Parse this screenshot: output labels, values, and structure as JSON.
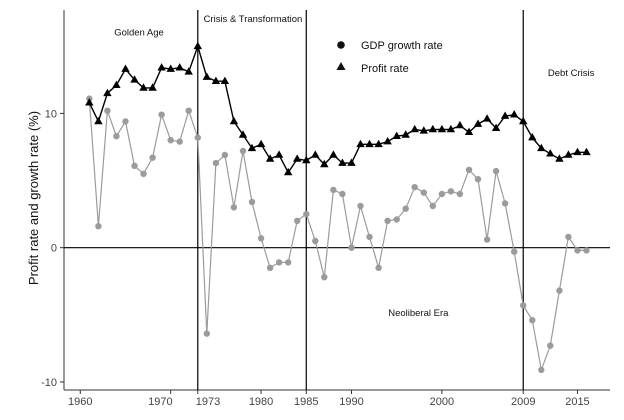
{
  "chart_data": {
    "type": "line",
    "ylabel": "Profit rate and growth rate (%)",
    "xlabel": "",
    "xlim": [
      1958.2,
      2018.6
    ],
    "ylim": [
      -10.6,
      17.7
    ],
    "x_ticks": [
      {
        "value": 1960,
        "label": "1960"
      },
      {
        "value": 1970,
        "label": "1970"
      },
      {
        "value": 1973,
        "label": "1973"
      },
      {
        "value": 1980,
        "label": "1980"
      },
      {
        "value": 1985,
        "label": "1985"
      },
      {
        "value": 1990,
        "label": "1990"
      },
      {
        "value": 2000,
        "label": "2000"
      },
      {
        "value": 2009,
        "label": "2009"
      },
      {
        "value": 2015,
        "label": "2015"
      }
    ],
    "y_ticks": [
      {
        "value": 10,
        "label": "10"
      },
      {
        "value": 0,
        "label": "0"
      },
      {
        "value": -10,
        "label": "-10"
      }
    ],
    "reference_lines": {
      "vertical": [
        1973,
        1985,
        2009
      ],
      "horizontal": [
        0
      ]
    },
    "eras": [
      {
        "label": "Golden Age",
        "x": 1966.5,
        "y": 15.8
      },
      {
        "label": "Crisis & Transformation",
        "x": 1979.1,
        "y": 16.8
      },
      {
        "label": "Neoliberal Era",
        "x": 1997.4,
        "y": -5.1
      },
      {
        "label": "Debt Crisis",
        "x": 2014.3,
        "y": 12.8
      }
    ],
    "legend": {
      "position": "top-center",
      "entries": [
        {
          "label": "GDP growth rate",
          "marker": "circle"
        },
        {
          "label": "Profit rate",
          "marker": "triangle"
        }
      ]
    },
    "colors": {
      "gdp": "#9b9b9b",
      "profit": "#000000",
      "axis": "#333333",
      "reference": "#000000"
    },
    "series": [
      {
        "name": "GDP growth rate",
        "marker": "circle",
        "x": [
          1961,
          1962,
          1963,
          1964,
          1965,
          1966,
          1967,
          1968,
          1969,
          1970,
          1971,
          1972,
          1973,
          1974,
          1975,
          1976,
          1977,
          1978,
          1979,
          1980,
          1981,
          1982,
          1983,
          1984,
          1985,
          1986,
          1987,
          1988,
          1989,
          1990,
          1991,
          1992,
          1993,
          1994,
          1995,
          1996,
          1997,
          1998,
          1999,
          2000,
          2001,
          2002,
          2003,
          2004,
          2005,
          2006,
          2007,
          2008,
          2009,
          2010,
          2011,
          2012,
          2013,
          2014,
          2015,
          2016
        ],
        "values": [
          11.1,
          1.6,
          10.2,
          8.3,
          9.4,
          6.1,
          5.5,
          6.7,
          9.9,
          8.0,
          7.9,
          10.2,
          8.2,
          -6.4,
          6.3,
          6.9,
          3.0,
          7.2,
          3.4,
          0.7,
          -1.5,
          -1.1,
          -1.1,
          2.0,
          2.5,
          0.5,
          -2.2,
          4.3,
          4.0,
          0.0,
          3.1,
          0.8,
          -1.5,
          2.0,
          2.1,
          2.9,
          4.5,
          4.1,
          3.1,
          4.0,
          4.2,
          4.0,
          5.8,
          5.1,
          0.6,
          5.7,
          3.3,
          -0.3,
          -4.3,
          -5.4,
          -9.1,
          -7.3,
          -3.2,
          0.8,
          -0.2,
          -0.2
        ]
      },
      {
        "name": "Profit rate",
        "marker": "triangle",
        "x": [
          1961,
          1962,
          1963,
          1964,
          1965,
          1966,
          1967,
          1968,
          1969,
          1970,
          1971,
          1972,
          1973,
          1974,
          1975,
          1976,
          1977,
          1978,
          1979,
          1980,
          1981,
          1982,
          1983,
          1984,
          1985,
          1986,
          1987,
          1988,
          1989,
          1990,
          1991,
          1992,
          1993,
          1994,
          1995,
          1996,
          1997,
          1998,
          1999,
          2000,
          2001,
          2002,
          2003,
          2004,
          2005,
          2006,
          2007,
          2008,
          2009,
          2010,
          2011,
          2012,
          2013,
          2014,
          2015,
          2016
        ],
        "values": [
          10.8,
          9.4,
          11.5,
          12.1,
          13.3,
          12.5,
          11.9,
          11.9,
          13.4,
          13.3,
          13.4,
          13.1,
          15.0,
          12.7,
          12.4,
          12.4,
          9.4,
          8.4,
          7.4,
          7.7,
          6.6,
          6.9,
          5.6,
          6.6,
          6.5,
          6.9,
          6.2,
          6.9,
          6.3,
          6.3,
          7.7,
          7.7,
          7.7,
          7.9,
          8.3,
          8.4,
          8.8,
          8.7,
          8.8,
          8.8,
          8.8,
          9.1,
          8.6,
          9.2,
          9.6,
          8.9,
          9.8,
          9.9,
          9.4,
          8.2,
          7.4,
          7.0,
          6.6,
          6.9,
          7.1,
          7.1
        ]
      }
    ]
  }
}
